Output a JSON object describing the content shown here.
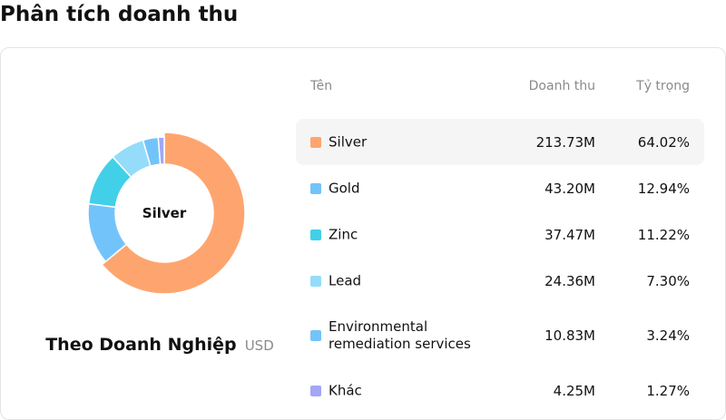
{
  "page": {
    "title": "Phân tích doanh thu"
  },
  "chart_data": {
    "type": "pie",
    "center_label": "Silver",
    "caption": "Theo Doanh Nghiệp",
    "unit": "USD",
    "columns": {
      "name": "Tên",
      "revenue": "Doanh thu",
      "share": "Tỷ trọng"
    },
    "slices": [
      {
        "name": "Silver",
        "revenue": "213.73M",
        "share_label": "64.02%",
        "value": 64.02,
        "color": "#fea56f"
      },
      {
        "name": "Gold",
        "revenue": "43.20M",
        "share_label": "12.94%",
        "value": 12.94,
        "color": "#73c3fb"
      },
      {
        "name": "Zinc",
        "revenue": "37.47M",
        "share_label": "11.22%",
        "value": 11.22,
        "color": "#41d0e8"
      },
      {
        "name": "Lead",
        "revenue": "24.36M",
        "share_label": "7.30%",
        "value": 7.3,
        "color": "#94dcfa"
      },
      {
        "name": "Environmental remediation services",
        "revenue": "10.83M",
        "share_label": "3.24%",
        "value": 3.24,
        "color": "#73c3fb"
      },
      {
        "name": "Khác",
        "revenue": "4.25M",
        "share_label": "1.27%",
        "value": 1.27,
        "color": "#a3a6f6"
      }
    ],
    "active_index": 0
  }
}
